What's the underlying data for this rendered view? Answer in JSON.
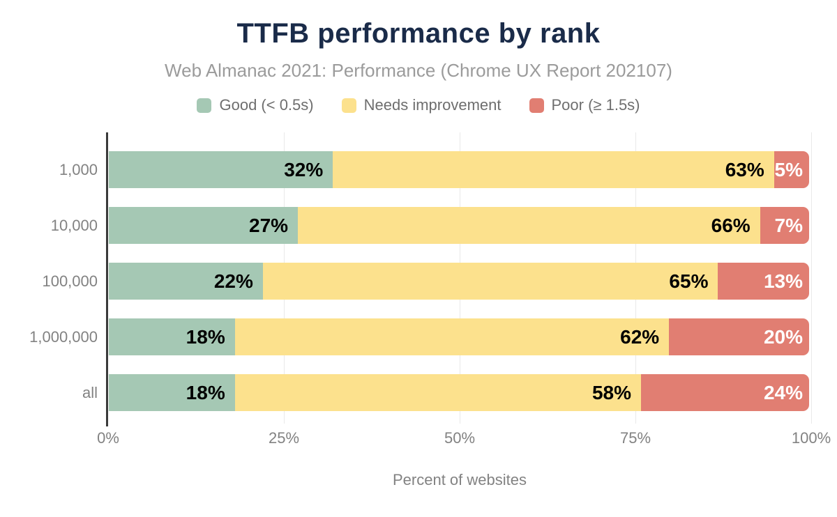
{
  "chart_data": {
    "type": "bar",
    "orientation": "horizontal",
    "stacked": true,
    "title": "TTFB performance by rank",
    "subtitle": "Web Almanac 2021: Performance (Chrome UX Report 202107)",
    "xlabel": "Percent of websites",
    "categories": [
      "1,000",
      "10,000",
      "100,000",
      "1,000,000",
      "all"
    ],
    "series": [
      {
        "name": "Good (< 0.5s)",
        "color": "#a5c8b4",
        "label_color": "#000000",
        "values": [
          32,
          27,
          22,
          18,
          18
        ]
      },
      {
        "name": "Needs improvement",
        "color": "#fce18d",
        "label_color": "#000000",
        "values": [
          63,
          66,
          65,
          62,
          58
        ]
      },
      {
        "name": "Poor (≥ 1.5s)",
        "color": "#e17e72",
        "label_color": "#ffffff",
        "values": [
          5,
          7,
          13,
          20,
          24
        ]
      }
    ],
    "value_suffix": "%",
    "xlim": [
      0,
      100
    ],
    "x_tick_values": [
      0,
      25,
      50,
      75,
      100
    ],
    "x_tick_labels": [
      "0%",
      "25%",
      "50%",
      "75%",
      "100%"
    ],
    "grid": "vertical",
    "legend_position": "top",
    "colors": {
      "title": "#1a2b49",
      "subtitle": "#9b9b9b",
      "axis_text": "#828282",
      "axis_line": "#3a3a3a",
      "gridline": "#e9e9e9",
      "background": "#ffffff"
    }
  }
}
